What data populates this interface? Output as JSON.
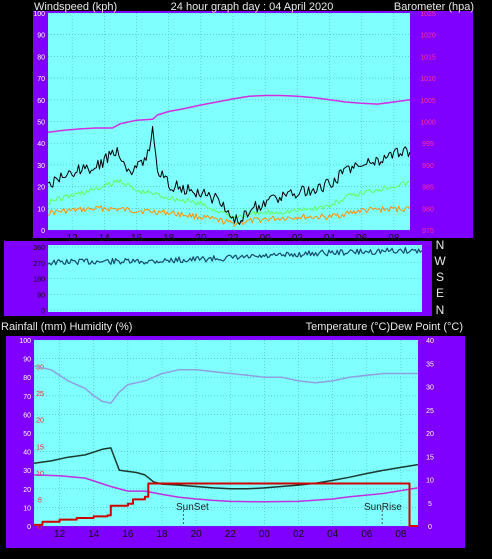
{
  "header": {
    "left_label": "Windspeed (kph)",
    "center_label": "24 hour graph day : 04 April 2020",
    "right_label": "Barometer (hpa)"
  },
  "lower_header": {
    "left_label": "Rainfall (mm)  Humidity (%)",
    "right_label": "Temperature (°C)Dew Point (°C)"
  },
  "compass": [
    "N",
    "W",
    "S",
    "E",
    "N"
  ],
  "annotations": {
    "sunset": "SunSet",
    "sunrise": "SunRise"
  },
  "colors": {
    "background": "#000000",
    "frame": "#7f00ff",
    "plot": "#80ffff",
    "grid": "#4ab8b8",
    "wind_gust": "#000000",
    "wind_avg": "#60ff60",
    "wind_low": "#ff9000",
    "barometer": "#d030e0",
    "direction": "#144a6a",
    "humidity": "#8fa0e0",
    "temperature": "#1a3a30",
    "dew_point": "#c030e0",
    "rainfall": "#d00000",
    "left_scale": "#ffffff",
    "right_scale_top": "#ff2c9c",
    "rain_scale": "#ff2020"
  },
  "chart_data": [
    {
      "type": "line",
      "panel": "wind_barometer",
      "title": "24 hour graph day : 04 April 2020",
      "x_tick_labels": [
        "12",
        "14",
        "16",
        "18",
        "20",
        "22",
        "00",
        "02",
        "04",
        "06",
        "08"
      ],
      "xlim_hours": [
        10.5,
        33.0
      ],
      "ylabel_left": "Windspeed (kph)",
      "ylim_left": [
        0,
        100
      ],
      "y_ticks_left": [
        0,
        10,
        20,
        30,
        40,
        50,
        60,
        70,
        80,
        90,
        100
      ],
      "ylabel_right": "Barometer (hpa)",
      "ylim_right": [
        975,
        1025
      ],
      "y_ticks_right": [
        975,
        980,
        985,
        990,
        995,
        1000,
        1005,
        1010,
        1015,
        1020,
        1025
      ],
      "grid": true,
      "series": [
        {
          "name": "gust",
          "axis": "left",
          "hours": [
            10.5,
            11.5,
            12.5,
            13.5,
            14.2,
            14.8,
            15.5,
            16.3,
            16.8,
            17.0,
            17.3,
            18.0,
            19.0,
            20.0,
            21.0,
            21.5,
            22.0,
            22.5,
            23.0,
            24.0,
            25.0,
            26.0,
            27.0,
            28.0,
            28.5,
            29.0,
            30.0,
            31.0,
            32.0,
            33.0
          ],
          "values": [
            20,
            25,
            28,
            29,
            33,
            37,
            27,
            30,
            38,
            46,
            28,
            21,
            19,
            17,
            14,
            10,
            6,
            5,
            9,
            13,
            15,
            17,
            19,
            21,
            24,
            28,
            30,
            32,
            35,
            36
          ]
        },
        {
          "name": "average",
          "axis": "left",
          "hours": [
            10.5,
            12.0,
            14.0,
            15.0,
            16.0,
            17.0,
            18.0,
            20.0,
            22.0,
            24.0,
            26.0,
            28.0,
            29.0,
            31.0,
            33.0
          ],
          "values": [
            13,
            16,
            20,
            23,
            18,
            17,
            15,
            12,
            6,
            8,
            9,
            11,
            15,
            19,
            22
          ]
        },
        {
          "name": "low",
          "axis": "left",
          "hours": [
            10.5,
            12.0,
            14.0,
            16.0,
            18.0,
            20.0,
            22.0,
            24.0,
            26.0,
            28.0,
            30.0,
            33.0
          ],
          "values": [
            8,
            9,
            10,
            9,
            8,
            6,
            3,
            5,
            6,
            6,
            9,
            10
          ]
        },
        {
          "name": "barometer",
          "axis": "right",
          "hours": [
            10.5,
            11.5,
            12.5,
            13.5,
            14.0,
            14.5,
            15.0,
            16.0,
            17.0,
            17.3,
            18.0,
            19.0,
            20.0,
            21.0,
            22.0,
            23.0,
            24.0,
            25.0,
            26.0,
            27.0,
            28.0,
            29.0,
            30.0,
            31.0,
            32.0,
            33.0
          ],
          "values": [
            997.5,
            998.0,
            998.3,
            998.5,
            998.5,
            998.5,
            999.5,
            1000.3,
            1000.5,
            1001.5,
            1002.3,
            1003.0,
            1003.8,
            1004.5,
            1005.2,
            1005.8,
            1006.0,
            1006.0,
            1005.8,
            1005.5,
            1005.0,
            1004.5,
            1004.2,
            1004.0,
            1004.5,
            1005.0
          ]
        }
      ]
    },
    {
      "type": "line",
      "panel": "wind_direction",
      "y_tick_labels": [
        "360",
        "270",
        "180",
        "90",
        "0"
      ],
      "ylim": [
        0,
        360
      ],
      "compass_labels": [
        "N",
        "W",
        "S",
        "E",
        "N"
      ],
      "series": [
        {
          "name": "direction",
          "hours": [
            10.5,
            12.0,
            14.0,
            16.0,
            18.0,
            20.0,
            22.0,
            24.0,
            26.0,
            27.0,
            28.0,
            29.0,
            30.0,
            31.0,
            32.0,
            33.0
          ],
          "values": [
            265,
            270,
            272,
            270,
            278,
            285,
            292,
            300,
            312,
            318,
            320,
            322,
            325,
            328,
            330,
            330
          ]
        }
      ]
    },
    {
      "type": "line",
      "panel": "rain_humidity_temperature",
      "x_tick_labels": [
        "12",
        "14",
        "16",
        "18",
        "20",
        "22",
        "00",
        "02",
        "04",
        "06",
        "08"
      ],
      "xlim_hours": [
        10.5,
        33.0
      ],
      "ylabel_left": "Rainfall (mm)  Humidity (%)",
      "ylim_left": [
        0,
        100
      ],
      "y_ticks_left": [
        0,
        10,
        20,
        30,
        40,
        50,
        60,
        70,
        80,
        90,
        100
      ],
      "rain_axis_ticks": [
        0,
        5,
        10,
        15,
        20,
        25,
        30
      ],
      "ylabel_right": "Temperature (°C)Dew Point (°C)",
      "ylim_right": [
        0,
        40
      ],
      "y_ticks_right": [
        0,
        5,
        10,
        15,
        20,
        25,
        30,
        35,
        40
      ],
      "grid": true,
      "series": [
        {
          "name": "humidity",
          "axis": "left",
          "hours": [
            10.5,
            11.5,
            12.5,
            13.5,
            14.0,
            14.5,
            15.0,
            15.5,
            16.0,
            17.0,
            17.5,
            18.0,
            19.0,
            20.0,
            21.0,
            22.0,
            23.0,
            24.0,
            25.0,
            26.0,
            27.0,
            28.0,
            29.0,
            30.0,
            31.0,
            32.0,
            33.0
          ],
          "values": [
            86,
            84,
            78,
            74,
            70,
            67,
            66,
            72,
            76,
            78,
            80,
            82,
            84,
            84,
            83,
            82,
            81,
            80,
            80,
            78,
            77,
            78,
            80,
            81,
            82,
            82,
            82
          ]
        },
        {
          "name": "temperature",
          "axis": "right",
          "hours": [
            10.5,
            11.5,
            12.5,
            13.5,
            14.5,
            15.0,
            15.5,
            16.5,
            17.0,
            17.5,
            18.0,
            19.0,
            20.0,
            21.0,
            22.0,
            23.0,
            24.0,
            25.0,
            26.0,
            27.0,
            28.0,
            29.0,
            30.0,
            31.0,
            32.0,
            33.0
          ],
          "values": [
            13.5,
            14.0,
            14.8,
            15.3,
            16.5,
            16.8,
            12.0,
            11.5,
            11.0,
            9.5,
            9.0,
            8.8,
            8.5,
            8.2,
            8.0,
            8.0,
            8.2,
            8.5,
            8.8,
            9.2,
            9.8,
            10.5,
            11.3,
            12.0,
            12.6,
            13.2
          ]
        },
        {
          "name": "dew_point",
          "axis": "right",
          "hours": [
            10.5,
            12.0,
            13.5,
            15.0,
            16.0,
            17.0,
            18.0,
            19.0,
            20.0,
            21.0,
            22.0,
            24.0,
            26.0,
            28.0,
            29.0,
            31.0,
            33.0
          ],
          "values": [
            11.0,
            10.8,
            10.3,
            8.5,
            7.5,
            7.5,
            6.8,
            6.2,
            5.8,
            5.5,
            5.3,
            5.2,
            5.3,
            5.8,
            6.3,
            7.0,
            8.2
          ]
        },
        {
          "name": "rainfall",
          "axis": "rain",
          "hours": [
            10.5,
            11.0,
            12.0,
            13.0,
            14.0,
            14.8,
            15.0,
            16.0,
            16.3,
            17.0,
            17.2,
            17.5,
            20.0,
            24.0,
            28.0,
            32.0,
            32.4,
            32.5,
            33.0
          ],
          "values": [
            0.2,
            0.8,
            1.2,
            1.5,
            1.8,
            2.0,
            3.8,
            4.2,
            5.0,
            5.5,
            8.0,
            8.0,
            8.0,
            8.0,
            8.0,
            8.0,
            8.0,
            0.0,
            0.0
          ]
        }
      ]
    }
  ]
}
